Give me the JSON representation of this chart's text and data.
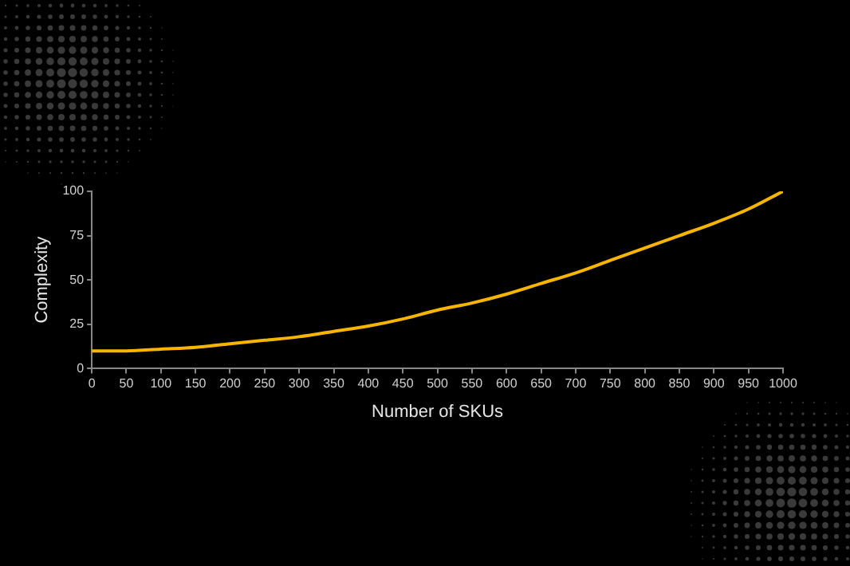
{
  "chart_data": {
    "type": "line",
    "xlabel": "Number of SKUs",
    "ylabel": "Complexity",
    "x": [
      0,
      50,
      100,
      150,
      200,
      250,
      300,
      350,
      400,
      450,
      500,
      550,
      600,
      650,
      700,
      750,
      800,
      850,
      900,
      950,
      1000
    ],
    "series": [
      {
        "color": "#f7b500",
        "values": [
          10,
          10,
          11,
          12,
          14,
          16,
          18,
          21,
          24,
          28,
          33,
          37,
          42,
          48,
          54,
          61,
          68,
          75,
          82,
          90,
          100
        ]
      }
    ],
    "xlim": [
      0,
      1000
    ],
    "xticks": [
      0,
      50,
      100,
      150,
      200,
      250,
      300,
      350,
      400,
      450,
      500,
      550,
      600,
      650,
      700,
      750,
      800,
      850,
      900,
      950,
      1000
    ],
    "ylim": [
      0,
      100
    ],
    "yticks": [
      0,
      25,
      50,
      75,
      100
    ],
    "grid": false,
    "legend": false,
    "marker": "none",
    "line_style": "solid"
  }
}
